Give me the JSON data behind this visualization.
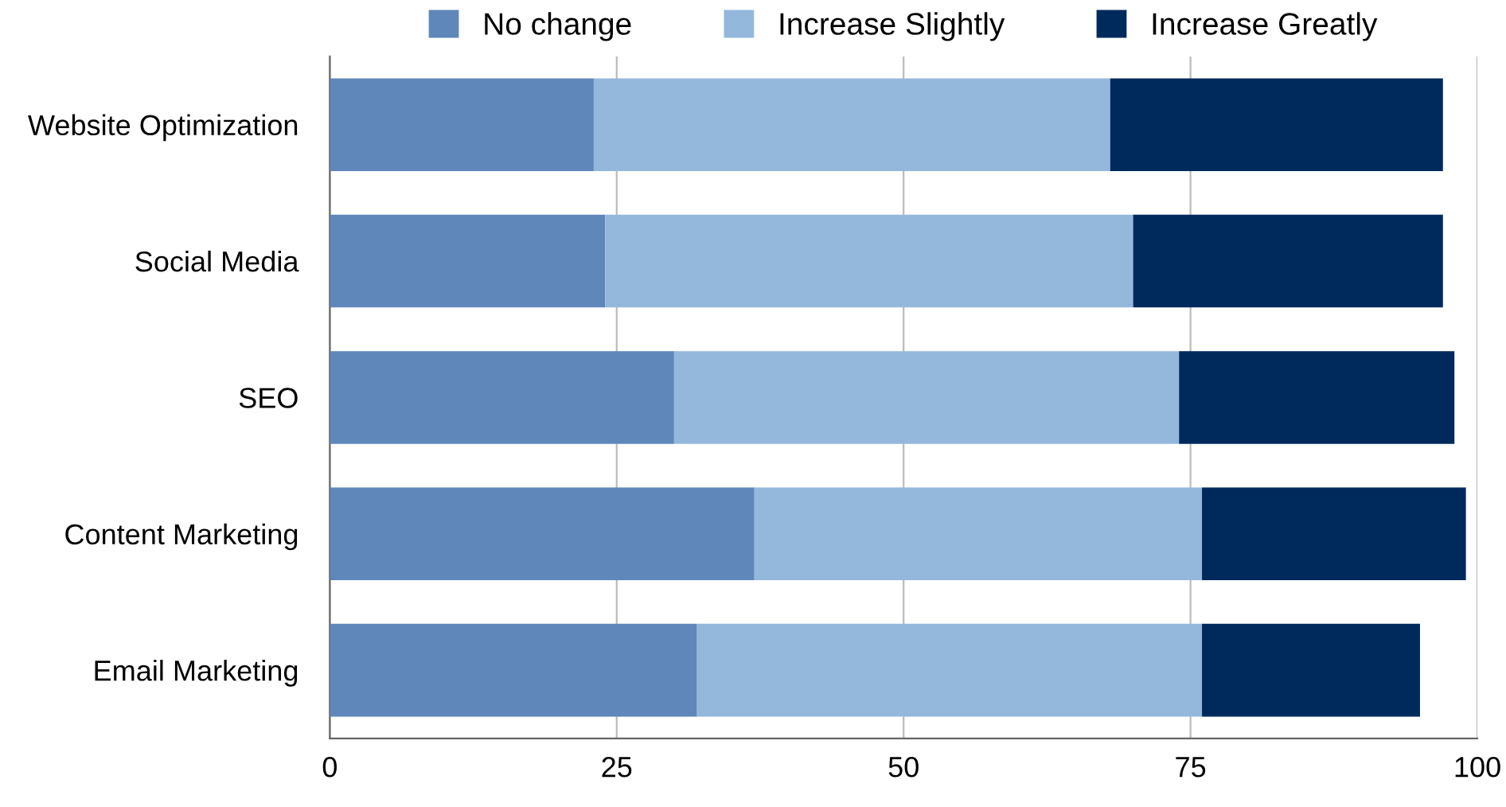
{
  "chart_data": {
    "type": "bar",
    "orientation": "horizontal",
    "stacked": true,
    "categories": [
      "Website Optimization",
      "Social Media",
      "SEO",
      "Content Marketing",
      "Email Marketing"
    ],
    "series": [
      {
        "name": "No change",
        "color": "#5f87b9",
        "values": [
          23,
          24,
          30,
          37,
          32
        ]
      },
      {
        "name": "Increase Slightly",
        "color": "#94b8dc",
        "values": [
          45,
          46,
          44,
          39,
          44
        ]
      },
      {
        "name": "Increase Greatly",
        "color": "#002a5c",
        "values": [
          29,
          27,
          24,
          23,
          19
        ]
      }
    ],
    "xlim": [
      0,
      100
    ],
    "xticks": [
      0,
      25,
      50,
      75,
      100
    ],
    "grid": "x",
    "legend": "top"
  }
}
